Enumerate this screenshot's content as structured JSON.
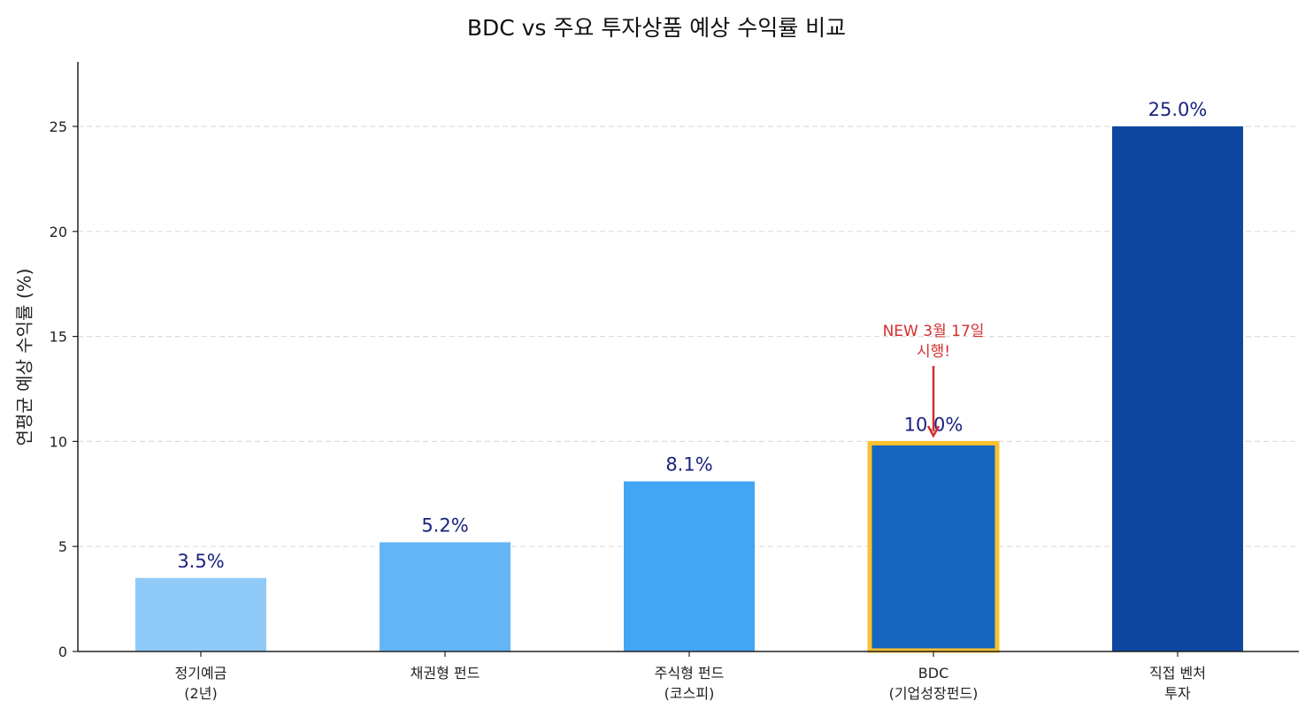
{
  "chart_data": {
    "type": "bar",
    "title": "BDC vs 주요 투자상품 예상 수익률 비교",
    "xlabel": "",
    "ylabel": "연평균 예상 수익률 (%)",
    "ylim": [
      0,
      28
    ],
    "yticks": [
      0,
      5,
      10,
      15,
      20,
      25
    ],
    "grid": {
      "axis": "y",
      "style": "dashed",
      "color": "#dddddd"
    },
    "categories": [
      "정기예금\n(2년)",
      "채권형 펀드",
      "주식형 펀드\n(코스피)",
      "BDC\n(기업성장펀드)",
      "직접 벤처\n투자"
    ],
    "category_lines": [
      [
        "정기예금",
        "(2년)"
      ],
      [
        "채권형 펀드"
      ],
      [
        "주식형 펀드",
        "(코스피)"
      ],
      [
        "BDC",
        "(기업성장펀드)"
      ],
      [
        "직접 벤처",
        "투자"
      ]
    ],
    "values": [
      3.5,
      5.2,
      8.1,
      10.0,
      25.0
    ],
    "value_labels": [
      "3.5%",
      "5.2%",
      "8.1%",
      "10.0%",
      "25.0%"
    ],
    "colors": [
      "#90caf9",
      "#64b5f6",
      "#42a5f5",
      "#1565c0",
      "#0d47a1"
    ],
    "highlight": {
      "index": 3,
      "edge_color": "#fbc02d"
    },
    "annotations": [
      {
        "text_lines": [
          "NEW 3월 17일",
          "시행!"
        ],
        "target_index": 3,
        "color": "#d32f2f"
      }
    ],
    "value_label_color": "#1a237e"
  }
}
